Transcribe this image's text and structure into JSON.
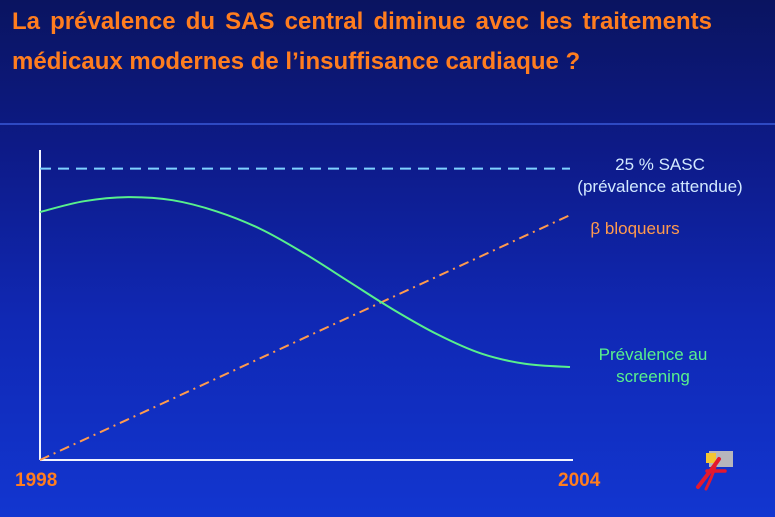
{
  "slide": {
    "title": "La prévalence du SAS central diminue avec les traitements médicaux modernes de l’insuffisance cardiaque ?"
  },
  "chart_data": {
    "type": "line",
    "title": "",
    "xlabel": "",
    "ylabel": "",
    "x_range": [
      1998,
      2004
    ],
    "y_range": [
      0,
      100
    ],
    "x_tick_labels": [
      "1998",
      "2004"
    ],
    "grid": false,
    "series": [
      {
        "key": "sasc",
        "name_lines": [
          "25 %  SASC",
          "(prévalence attendue)"
        ],
        "color": "#7fd2ff",
        "style": "dashed",
        "x": [
          1998,
          2004
        ],
        "y": [
          94,
          94
        ]
      },
      {
        "key": "beta",
        "name_lines": [
          "β bloqueurs"
        ],
        "color": "#ff9a4d",
        "style": "dash-dot",
        "x": [
          1998,
          2004
        ],
        "y": [
          0,
          79
        ]
      },
      {
        "key": "prev",
        "name_lines": [
          "Prévalence au",
          "screening"
        ],
        "color": "#58f08c",
        "style": "solid",
        "x": [
          1998,
          1998.5,
          1999,
          1999.5,
          2000,
          2000.5,
          2001,
          2001.5,
          2002,
          2002.5,
          2003,
          2003.5,
          2004
        ],
        "y": [
          80,
          83.5,
          84.8,
          83.8,
          80.2,
          74.5,
          66.5,
          57.5,
          48.5,
          40.5,
          34.3,
          31,
          30
        ]
      }
    ]
  }
}
